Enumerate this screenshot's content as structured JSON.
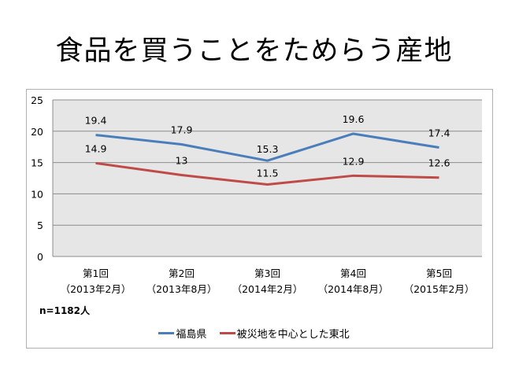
{
  "title": "食品を買うことをためらう産地",
  "note": "n=1182人",
  "chart_data": {
    "type": "line",
    "title": "食品を買うことをためらう産地",
    "categories": [
      [
        "第1回",
        "（2013年2月）"
      ],
      [
        "第2回",
        "（2013年8月）"
      ],
      [
        "第3回",
        "（2014年2月）"
      ],
      [
        "第4回",
        "（2014年8月）"
      ],
      [
        "第5回",
        "（2015年2月）"
      ]
    ],
    "series": [
      {
        "name": "福島県",
        "color": "#4a7ebb",
        "values": [
          19.4,
          17.9,
          15.3,
          19.6,
          17.4
        ],
        "labels": [
          "19.4",
          "17.9",
          "15.3",
          "19.6",
          "17.4"
        ]
      },
      {
        "name": "被災地を中心とした東北",
        "color": "#be4b48",
        "values": [
          14.9,
          13,
          11.5,
          12.9,
          12.6
        ],
        "labels": [
          "14.9",
          "13",
          "11.5",
          "12.9",
          "12.6"
        ]
      }
    ],
    "ylim": [
      0,
      25
    ],
    "yticks": [
      "0",
      "5",
      "10",
      "15",
      "20",
      "25"
    ],
    "grid": true,
    "plot_background": "#e6e6e6",
    "legend": "bottom"
  }
}
